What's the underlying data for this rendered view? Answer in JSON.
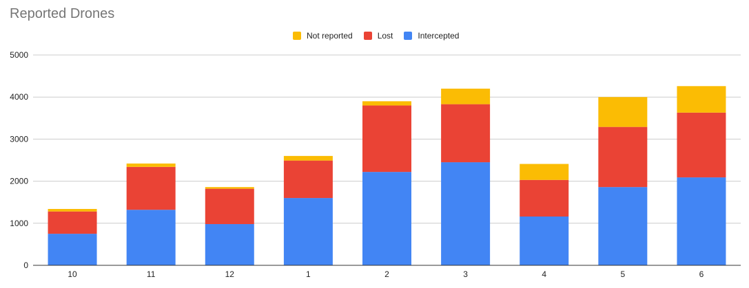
{
  "chart_data": {
    "type": "bar",
    "stacked": true,
    "title": "Reported Drones",
    "categories": [
      "10",
      "11",
      "12",
      "1",
      "2",
      "3",
      "4",
      "5",
      "6"
    ],
    "series": [
      {
        "name": "Intercepted",
        "color": "#4285F4",
        "values": [
          750,
          1320,
          980,
          1600,
          2220,
          2450,
          1160,
          1860,
          2090
        ]
      },
      {
        "name": "Lost",
        "color": "#EA4335",
        "values": [
          530,
          1020,
          840,
          890,
          1580,
          1380,
          870,
          1430,
          1540
        ]
      },
      {
        "name": "Not reported",
        "color": "#FBBC04",
        "values": [
          60,
          80,
          40,
          110,
          100,
          370,
          380,
          710,
          630
        ]
      }
    ],
    "legend_order": [
      "Not reported",
      "Lost",
      "Intercepted"
    ],
    "legend_position": "top-center",
    "ylim": [
      0,
      5000
    ],
    "yticks": [
      0,
      1000,
      2000,
      3000,
      4000,
      5000
    ],
    "xlabel": "",
    "ylabel": "",
    "grid": true
  }
}
